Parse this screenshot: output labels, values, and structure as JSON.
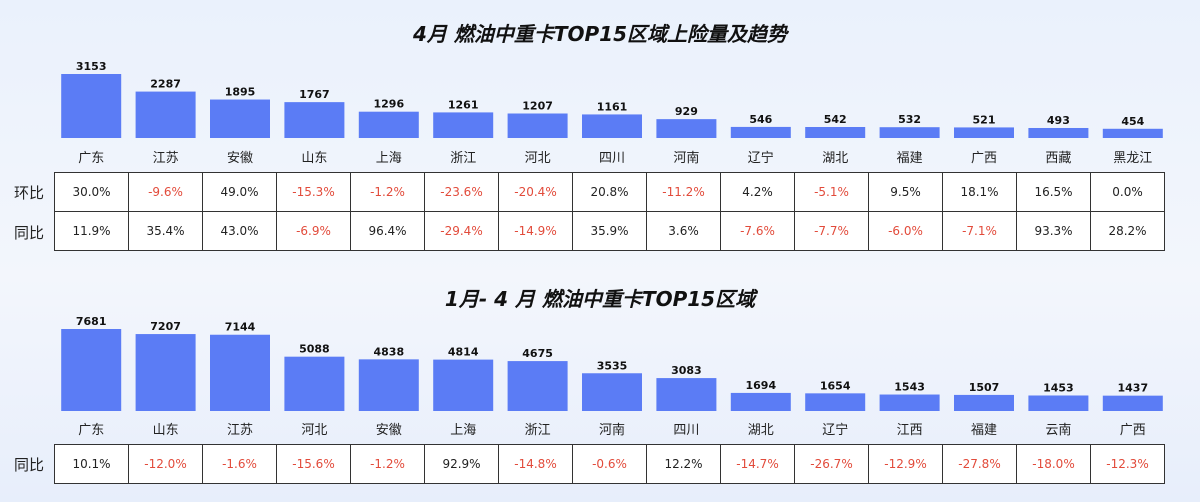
{
  "chart_data": [
    {
      "type": "bar",
      "title": "4月 燃油中重卡TOP15区域上险量及趋势",
      "categories": [
        "广东",
        "江苏",
        "安徽",
        "山东",
        "上海",
        "浙江",
        "河北",
        "四川",
        "河南",
        "辽宁",
        "湖北",
        "福建",
        "广西",
        "西藏",
        "黑龙江"
      ],
      "values": [
        3153,
        2287,
        1895,
        1767,
        1296,
        1261,
        1207,
        1161,
        929,
        546,
        542,
        532,
        521,
        493,
        454
      ],
      "color": "#5b7cf5",
      "table": {
        "rows": [
          {
            "label": "环比",
            "values": [
              "30.0%",
              "-9.6%",
              "49.0%",
              "-15.3%",
              "-1.2%",
              "-23.6%",
              "-20.4%",
              "20.8%",
              "-11.2%",
              "4.2%",
              "-5.1%",
              "9.5%",
              "18.1%",
              "16.5%",
              "0.0%"
            ]
          },
          {
            "label": "同比",
            "values": [
              "11.9%",
              "35.4%",
              "43.0%",
              "-6.9%",
              "96.4%",
              "-29.4%",
              "-14.9%",
              "35.9%",
              "3.6%",
              "-7.6%",
              "-7.7%",
              "-6.0%",
              "-7.1%",
              "93.3%",
              "28.2%"
            ]
          }
        ]
      }
    },
    {
      "type": "bar",
      "title": "1月- 4 月 燃油中重卡TOP15区域",
      "categories": [
        "广东",
        "山东",
        "江苏",
        "河北",
        "安徽",
        "上海",
        "浙江",
        "河南",
        "四川",
        "湖北",
        "辽宁",
        "江西",
        "福建",
        "云南",
        "广西"
      ],
      "values": [
        7681,
        7207,
        7144,
        5088,
        4838,
        4814,
        4675,
        3535,
        3083,
        1694,
        1654,
        1543,
        1507,
        1453,
        1437
      ],
      "color": "#5b7cf5",
      "table": {
        "rows": [
          {
            "label": "同比",
            "values": [
              "10.1%",
              "-12.0%",
              "-1.6%",
              "-15.6%",
              "-1.2%",
              "92.9%",
              "-14.8%",
              "-0.6%",
              "12.2%",
              "-14.7%",
              "-26.7%",
              "-12.9%",
              "-27.8%",
              "-18.0%",
              "-12.3%"
            ]
          }
        ]
      }
    }
  ]
}
